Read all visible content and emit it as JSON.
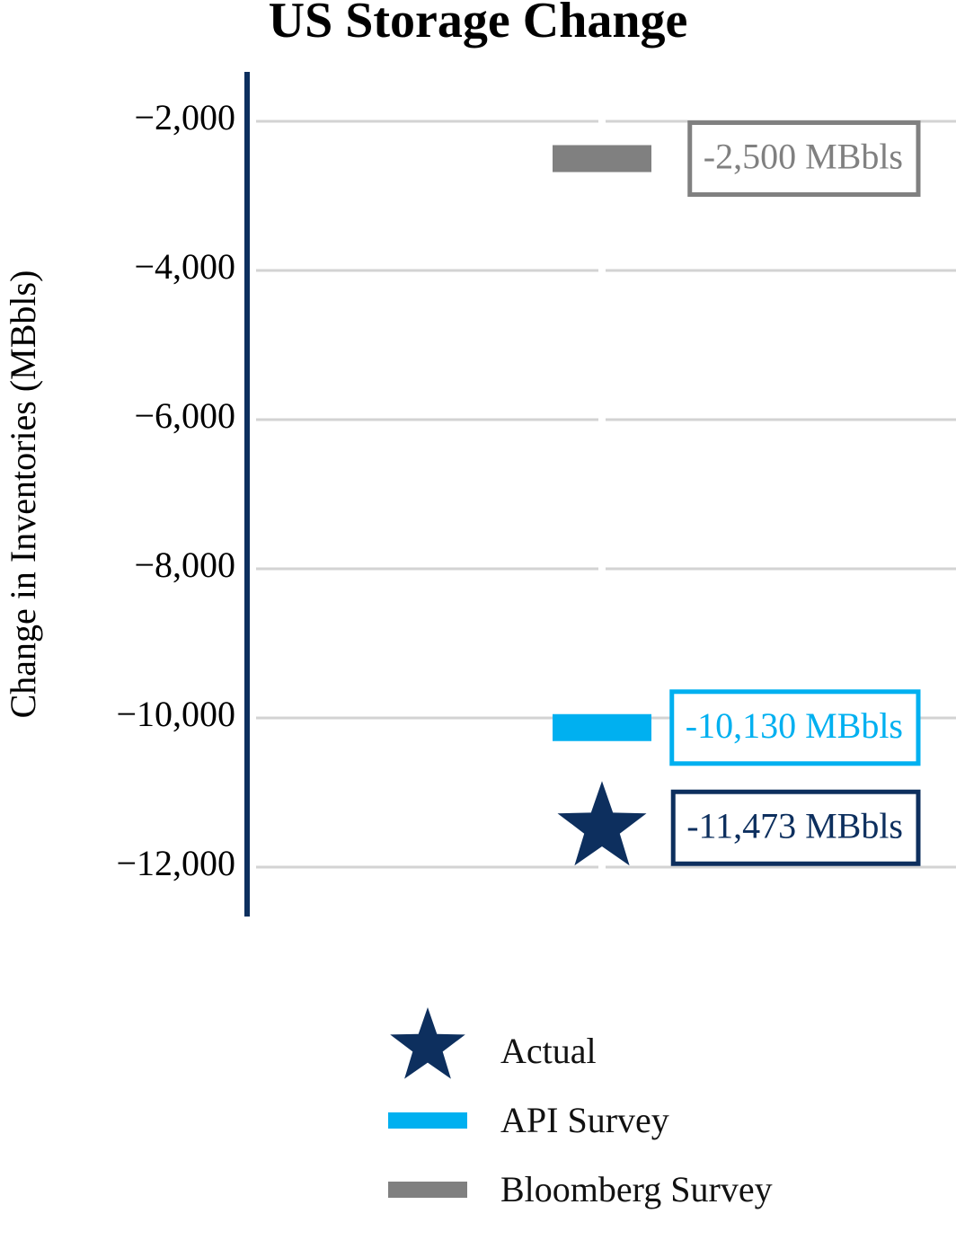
{
  "chart_data": {
    "type": "scatter",
    "title": "US Storage Change",
    "y_label": "Change in Inventories (MBbls)",
    "ylim": [
      -12663,
      -1337
    ],
    "yticks": [
      {
        "value": -2000,
        "label": "−2,000"
      },
      {
        "value": -4000,
        "label": "−4,000"
      },
      {
        "value": -6000,
        "label": "−6,000"
      },
      {
        "value": -8000,
        "label": "−8,000"
      },
      {
        "value": -10000,
        "label": "−10,000"
      },
      {
        "value": -12000,
        "label": "−12,000"
      }
    ],
    "grid": true,
    "legend": "bottom",
    "series": [
      {
        "name": "Actual",
        "color": "#0d2f5e",
        "marker": "star",
        "values": [
          -11473
        ],
        "value_labels": [
          "-11,473 MBbls"
        ]
      },
      {
        "name": "API Survey",
        "color": "#00b0f0",
        "marker": "bar",
        "values": [
          -10130
        ],
        "value_labels": [
          "-10,130 MBbls"
        ]
      },
      {
        "name": "Bloomberg Survey",
        "color": "#808080",
        "marker": "bar",
        "values": [
          -2500
        ],
        "value_labels": [
          "-2,500 MBbls"
        ]
      }
    ]
  }
}
